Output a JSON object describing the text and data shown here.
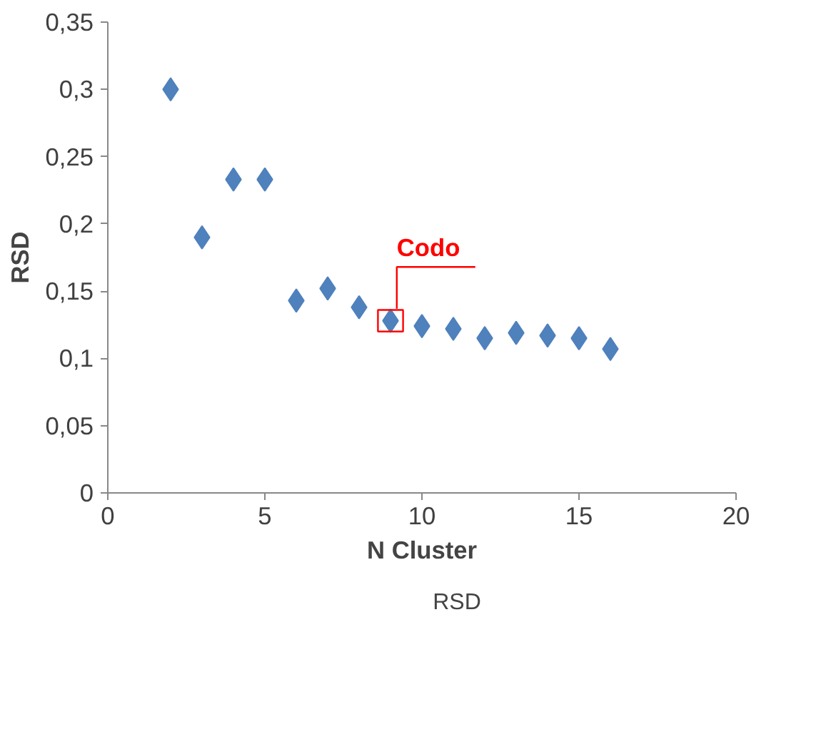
{
  "chart_data": {
    "type": "scatter",
    "xlabel": "N Cluster",
    "ylabel": "RSD",
    "x": [
      2,
      3,
      4,
      5,
      6,
      7,
      8,
      9,
      10,
      11,
      12,
      13,
      14,
      15,
      16
    ],
    "series": [
      {
        "name": "RSD",
        "color": "#4f81bd",
        "values": [
          0.3,
          0.19,
          0.233,
          0.233,
          0.143,
          0.152,
          0.138,
          0.128,
          0.124,
          0.122,
          0.115,
          0.119,
          0.117,
          0.115,
          0.107
        ]
      }
    ],
    "xlim": [
      0,
      20
    ],
    "xticks": [
      0,
      5,
      10,
      15,
      20
    ],
    "ylim": [
      0,
      0.35
    ],
    "yticks": [
      {
        "value": 0,
        "label": "0"
      },
      {
        "value": 0.05,
        "label": "0,05"
      },
      {
        "value": 0.1,
        "label": "0,1"
      },
      {
        "value": 0.15,
        "label": "0,15"
      },
      {
        "value": 0.2,
        "label": "0,2"
      },
      {
        "value": 0.25,
        "label": "0,25"
      },
      {
        "value": 0.3,
        "label": "0,3"
      },
      {
        "value": 0.35,
        "label": "0,35"
      }
    ],
    "annotations": [
      {
        "text": "Codo",
        "x": 9,
        "y": 0.128
      }
    ],
    "marker": "diamond",
    "grid": false,
    "legend": "bottom"
  }
}
